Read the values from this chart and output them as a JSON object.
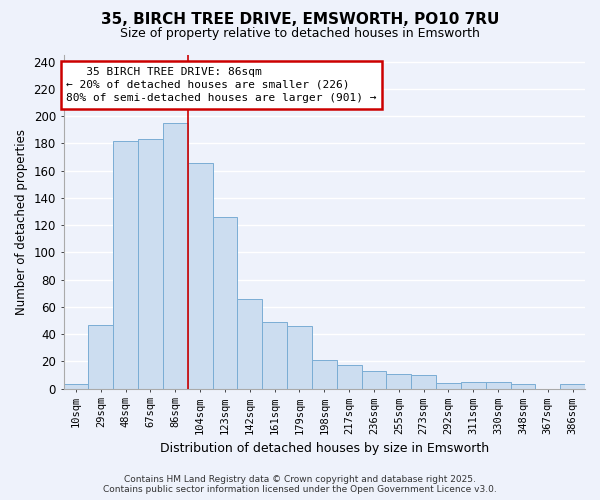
{
  "title": "35, BIRCH TREE DRIVE, EMSWORTH, PO10 7RU",
  "subtitle": "Size of property relative to detached houses in Emsworth",
  "xlabel": "Distribution of detached houses by size in Emsworth",
  "ylabel": "Number of detached properties",
  "bar_color": "#ccddf0",
  "bar_edge_color": "#7aadd4",
  "categories": [
    "10sqm",
    "29sqm",
    "48sqm",
    "67sqm",
    "86sqm",
    "104sqm",
    "123sqm",
    "142sqm",
    "161sqm",
    "179sqm",
    "198sqm",
    "217sqm",
    "236sqm",
    "255sqm",
    "273sqm",
    "292sqm",
    "311sqm",
    "330sqm",
    "348sqm",
    "367sqm",
    "386sqm"
  ],
  "values": [
    3,
    47,
    182,
    183,
    195,
    166,
    126,
    66,
    49,
    46,
    21,
    17,
    13,
    11,
    10,
    4,
    5,
    5,
    3,
    0,
    3
  ],
  "ylim": [
    0,
    245
  ],
  "yticks": [
    0,
    20,
    40,
    60,
    80,
    100,
    120,
    140,
    160,
    180,
    200,
    220,
    240
  ],
  "annotation_line1": "   35 BIRCH TREE DRIVE: 86sqm",
  "annotation_line2": "← 20% of detached houses are smaller (226)",
  "annotation_line3": "80% of semi-detached houses are larger (901) →",
  "vline_index": 4.5,
  "footer1": "Contains HM Land Registry data © Crown copyright and database right 2025.",
  "footer2": "Contains public sector information licensed under the Open Government Licence v3.0.",
  "background_color": "#eef2fb",
  "grid_color": "#ffffff",
  "vline_color": "#cc0000"
}
